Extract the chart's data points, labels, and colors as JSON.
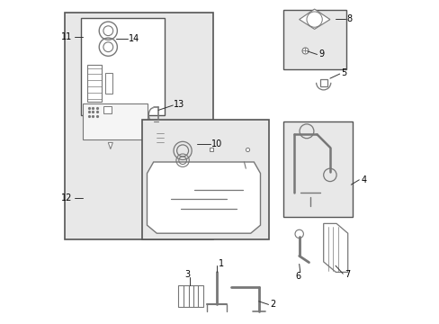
{
  "background_color": "#ffffff",
  "fig_width": 4.89,
  "fig_height": 3.6,
  "dpi": 100,
  "border_color": "#555555",
  "line_color": "#555555",
  "text_color": "#000000",
  "component_color": "#777777",
  "light_gray": "#cccccc",
  "very_light_gray": "#e8e8e8"
}
